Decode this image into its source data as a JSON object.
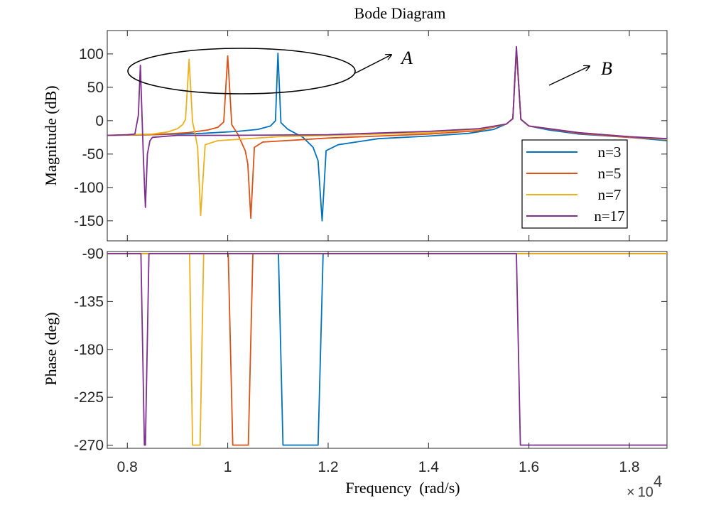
{
  "chart_data": {
    "type": "line",
    "title": "Bode Diagram",
    "xlabel": "Frequency  (rad/s)",
    "x_exponent": {
      "times": "×",
      "base": "10",
      "power": "4"
    },
    "xlim": [
      0.76,
      1.875
    ],
    "xticks": [
      0.8,
      1,
      1.2,
      1.4,
      1.6,
      1.8
    ],
    "xtick_labels": [
      "0.8",
      "1",
      "1.2",
      "1.4",
      "1.6",
      "1.8"
    ],
    "magnitude": {
      "ylabel": "Magnitude (dB)",
      "ylim": [
        -180,
        135
      ],
      "yticks": [
        100,
        50,
        0,
        -50,
        -100,
        -150
      ],
      "ytick_labels": [
        "100",
        "50",
        "0",
        "-50",
        "-100",
        "-150"
      ],
      "series": [
        {
          "name": "n=3",
          "color": "#0072BD",
          "x": [
            0.76,
            0.85,
            0.95,
            1.02,
            1.06,
            1.085,
            1.095,
            1.1,
            1.106,
            1.12,
            1.15,
            1.17,
            1.18,
            1.188,
            1.196,
            1.22,
            1.3,
            1.4,
            1.48,
            1.53,
            1.555,
            1.568,
            1.575,
            1.584,
            1.6,
            1.64,
            1.7,
            1.8,
            1.875
          ],
          "y": [
            -22,
            -21,
            -19,
            -16,
            -13,
            -8,
            0,
            101,
            -3,
            -13,
            -25,
            -40,
            -60,
            -150,
            -45,
            -36,
            -27,
            -23,
            -19,
            -13,
            -5,
            3,
            105,
            2,
            -8,
            -14,
            -20,
            -25,
            -30
          ]
        },
        {
          "name": "n=5",
          "color": "#D95319",
          "x": [
            0.76,
            0.85,
            0.92,
            0.96,
            0.98,
            0.992,
            1.0,
            1.008,
            1.02,
            1.035,
            1.04,
            1.046,
            1.053,
            1.07,
            1.2,
            1.4,
            1.5,
            1.555,
            1.568,
            1.575,
            1.584,
            1.6,
            1.7,
            1.8,
            1.875
          ],
          "y": [
            -22,
            -21,
            -18,
            -14,
            -10,
            -2,
            97,
            -6,
            -20,
            -45,
            -65,
            -146,
            -40,
            -32,
            -26,
            -20,
            -15,
            -5,
            3,
            107,
            2,
            -8,
            -19,
            -25,
            -28
          ]
        },
        {
          "name": "n=7",
          "color": "#EDB120",
          "x": [
            0.76,
            0.85,
            0.88,
            0.9,
            0.91,
            0.916,
            0.923,
            0.93,
            0.935,
            0.94,
            0.946,
            0.955,
            0.98,
            1.1,
            1.4,
            1.5,
            1.555,
            1.568,
            1.575,
            1.584,
            1.6,
            1.7,
            1.8,
            1.875
          ],
          "y": [
            -22,
            -20,
            -17,
            -12,
            -6,
            2,
            92,
            -2,
            -20,
            -40,
            -142,
            -36,
            -30,
            -24,
            -18,
            -13,
            -5,
            3,
            108,
            2,
            -8,
            -18,
            -24,
            -28
          ]
        },
        {
          "name": "n=17",
          "color": "#7E2F8E",
          "x": [
            0.76,
            0.8,
            0.815,
            0.822,
            0.826,
            0.832,
            0.836,
            0.84,
            0.845,
            0.85,
            0.9,
            1.0,
            1.2,
            1.4,
            1.5,
            1.555,
            1.568,
            1.575,
            1.584,
            1.6,
            1.7,
            1.8,
            1.875
          ],
          "y": [
            -22,
            -21,
            -20,
            8,
            83,
            -56,
            -130,
            -50,
            -30,
            -25,
            -22,
            -22,
            -21,
            -16,
            -12,
            -5,
            3,
            111,
            2,
            -8,
            -18,
            -24,
            -27
          ]
        }
      ],
      "annotations": [
        {
          "label": "A",
          "target": "magnitude peaks of n=17, n=7, n=5, n=3"
        },
        {
          "label": "B",
          "target": "common resonance peak near 1.575"
        }
      ],
      "legend": "lower-right"
    },
    "phase": {
      "ylabel": "Phase (deg)",
      "ylim": [
        -273,
        -88
      ],
      "yticks": [
        -90,
        -135,
        -180,
        -225,
        -270
      ],
      "ytick_labels": [
        "-90",
        "-135",
        "-180",
        "-225",
        "-270"
      ],
      "series": [
        {
          "name": "n=3",
          "color": "#0072BD",
          "x": [
            0.76,
            1.101,
            1.11,
            1.18,
            1.19,
            1.875
          ],
          "y": [
            -90,
            -90,
            -270,
            -270,
            -90,
            -90
          ]
        },
        {
          "name": "n=5",
          "color": "#D95319",
          "x": [
            0.76,
            1.001,
            1.01,
            1.041,
            1.05,
            1.875
          ],
          "y": [
            -90,
            -90,
            -270,
            -270,
            -90,
            -90
          ]
        },
        {
          "name": "n=7",
          "color": "#EDB120",
          "x": [
            0.76,
            0.924,
            0.93,
            0.945,
            0.952,
            1.875
          ],
          "y": [
            -90,
            -90,
            -270,
            -270,
            -90,
            -90
          ]
        },
        {
          "name": "n=17",
          "color": "#7E2F8E",
          "x": [
            0.76,
            0.827,
            0.834,
            0.836,
            0.843,
            1.575,
            1.583,
            1.875
          ],
          "y": [
            -90,
            -90,
            -270,
            -270,
            -90,
            -90,
            -270,
            -270
          ]
        }
      ]
    }
  }
}
